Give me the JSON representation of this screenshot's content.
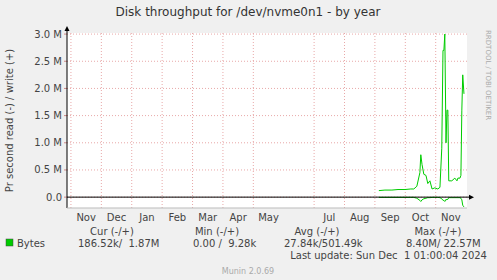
{
  "chart_data": {
    "type": "line",
    "title": "Disk throughput for /dev/nvme0n1 - by year",
    "y_label": "Pr second read (-) / write (+)",
    "watermark": "RRDTOOL / TOBI OETIKER",
    "grid": true,
    "xlim": [
      -0.13,
      13.03
    ],
    "xticks": [
      {
        "value": 0,
        "label": "Nov"
      },
      {
        "value": 1,
        "label": "Dec"
      },
      {
        "value": 2,
        "label": "Jan"
      },
      {
        "value": 3,
        "label": "Feb"
      },
      {
        "value": 4,
        "label": "Mar"
      },
      {
        "value": 5,
        "label": "Apr"
      },
      {
        "value": 6,
        "label": "May"
      },
      {
        "value": 8,
        "label": "Jul"
      },
      {
        "value": 9,
        "label": "Aug"
      },
      {
        "value": 10,
        "label": "Sep"
      },
      {
        "value": 11,
        "label": "Oct"
      },
      {
        "value": 12,
        "label": "Nov"
      }
    ],
    "ylim": [
      -200000,
      3020000
    ],
    "yticks": [
      {
        "value": 0,
        "label": "0.0"
      },
      {
        "value": 500000,
        "label": "0.5 M"
      },
      {
        "value": 1000000,
        "label": "1.0 M"
      },
      {
        "value": 1500000,
        "label": "1.5 M"
      },
      {
        "value": 2000000,
        "label": "2.0 M"
      },
      {
        "value": 2500000,
        "label": "2.5 M"
      },
      {
        "value": 3000000,
        "label": "3.0 M"
      }
    ],
    "series": [
      {
        "name": "Bytes",
        "color": "#00cc00",
        "x": [
          10.13,
          10.33,
          10.56,
          10.76,
          10.99,
          11.18,
          11.28,
          11.38,
          11.48,
          11.51,
          11.55,
          11.61,
          11.68,
          11.74,
          11.81,
          11.88,
          11.97,
          12.07,
          12.14,
          12.2,
          12.24,
          12.27,
          12.3,
          12.34,
          12.37,
          12.4,
          12.43,
          12.53,
          12.63,
          12.7,
          12.73,
          12.8,
          12.83,
          12.86,
          12.89,
          12.93
        ],
        "values": [
          120000,
          130000,
          130000,
          140000,
          140000,
          150000,
          150000,
          200000,
          450000,
          780000,
          600000,
          420000,
          400000,
          250000,
          300000,
          150000,
          170000,
          150000,
          180000,
          900000,
          2700000,
          2700000,
          3000000,
          1000000,
          1600000,
          1600000,
          300000,
          300000,
          350000,
          300000,
          350000,
          350000,
          400000,
          1600000,
          2250000,
          1900000
        ],
        "read_values": [
          -5000,
          -5000,
          -5000,
          -5000,
          -5000,
          -5000,
          -5000,
          -20000,
          -60000,
          -80000,
          -50000,
          -30000,
          -20000,
          -10000,
          -10000,
          -5000,
          -5000,
          -5000,
          -10000,
          -30000,
          -60000,
          -60000,
          -80000,
          -40000,
          -50000,
          -40000,
          -10000,
          -10000,
          -10000,
          -10000,
          -10000,
          -10000,
          -20000,
          -50000,
          -150000,
          -180000
        ]
      }
    ],
    "legend_table": {
      "headers": [
        "Cur (-/+)",
        "Min (-/+)",
        "Avg (-/+)",
        "Max (-/+)"
      ],
      "rows": [
        {
          "label": "Bytes",
          "cells": [
            "186.52k/  1.87M",
            "0.00 /  9.28k",
            "27.84k/501.49k",
            "8.40M/ 22.57M"
          ]
        }
      ]
    },
    "last_update": "Last update: Sun Dec  1 01:00:04 2024",
    "footer": "Munin 2.0.69"
  }
}
